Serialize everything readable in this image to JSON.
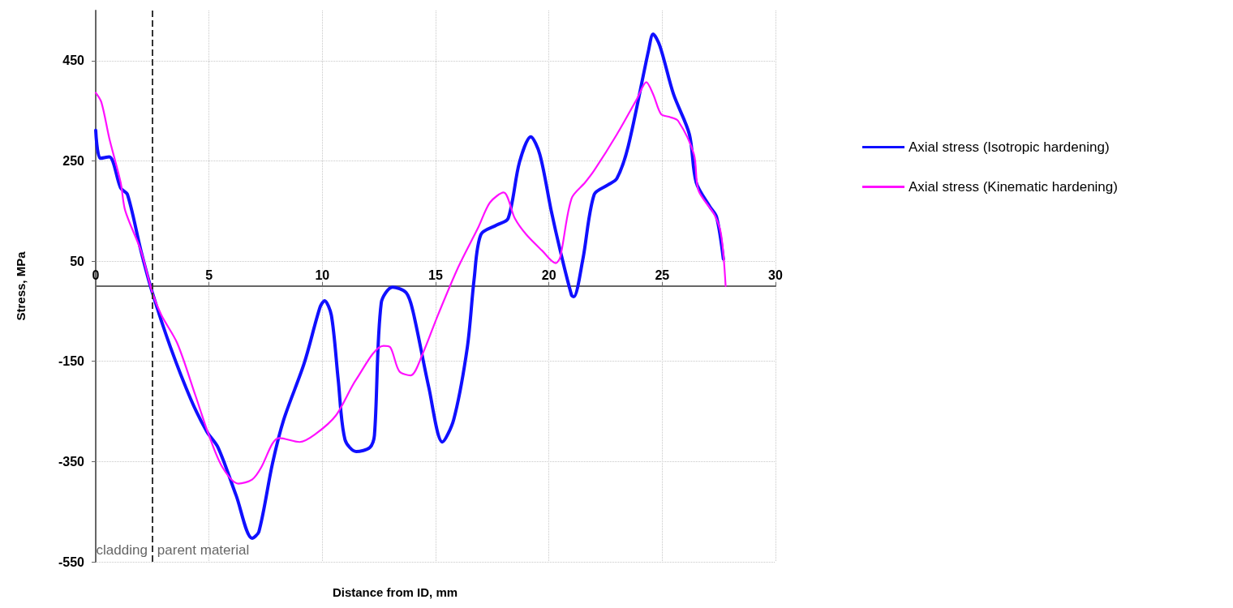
{
  "chart_data": {
    "type": "line",
    "xlabel": "Distance from ID, mm",
    "ylabel": "Stress, MPa",
    "xlim": [
      0,
      30
    ],
    "xticks": [
      0,
      5,
      10,
      15,
      20,
      25,
      30
    ],
    "ylim": [
      -550,
      550
    ],
    "yticks": [
      -550,
      -350,
      -150,
      50,
      250,
      450
    ],
    "grid": true,
    "legend": "right",
    "marker": "none",
    "line_style": "solid",
    "ref_lines": [
      {
        "axis": "x",
        "value": 2.5,
        "color": "#333333",
        "line_style": "dashed"
      }
    ],
    "annotations": [
      "cladding",
      "parent material"
    ],
    "series": [
      {
        "name": "Axial stress (Isotropic hardening)",
        "color": "#1010ff",
        "x": [
          0,
          0.2,
          0.6,
          1.1,
          1.4,
          2.0,
          2.5,
          3.3,
          4.2,
          4.9,
          5.4,
          6.2,
          6.9,
          7.2,
          7.8,
          8.3,
          9.2,
          9.9,
          10.1,
          10.4,
          10.7,
          11.0,
          11.5,
          12.1,
          12.3,
          12.6,
          13.1,
          13.7,
          14.0,
          14.7,
          15.3,
          15.8,
          16.4,
          16.7,
          17.0,
          17.7,
          18.2,
          18.7,
          19.2,
          19.6,
          20.1,
          20.5,
          21.0,
          21.1,
          21.5,
          22.0,
          22.6,
          23.0,
          23.5,
          24.4,
          24.6,
          24.9,
          25.5,
          26.2,
          26.5,
          27.1,
          27.4,
          27.7
        ],
        "values": [
          311,
          255,
          258,
          196,
          183,
          70,
          -13,
          -122,
          -226,
          -290,
          -322,
          -418,
          -503,
          -490,
          -354,
          -266,
          -154,
          -42,
          -29,
          -58,
          -186,
          -306,
          -330,
          -322,
          -298,
          -34,
          -2,
          -13,
          -50,
          -202,
          -311,
          -266,
          -122,
          14,
          103,
          122,
          135,
          247,
          298,
          263,
          151,
          71,
          -18,
          -21,
          54,
          183,
          202,
          215,
          279,
          471,
          503,
          479,
          383,
          303,
          207,
          159,
          138,
          54
        ]
      },
      {
        "name": "Axial stress (Kinematic hardening)",
        "color": "#ff10ff",
        "x": [
          0,
          0.25,
          0.6,
          1.1,
          1.3,
          2.0,
          2.5,
          2.9,
          3.6,
          4.4,
          5.0,
          5.6,
          6.3,
          6.9,
          7.3,
          7.8,
          8.1,
          9.0,
          9.7,
          10.6,
          11.5,
          12.7,
          13.0,
          13.4,
          13.9,
          14.4,
          15.1,
          16.0,
          16.9,
          17.4,
          18.0,
          18.5,
          19.0,
          19.7,
          20.3,
          20.5,
          21.0,
          21.6,
          22.0,
          23.0,
          23.9,
          24.3,
          24.6,
          24.95,
          25.3,
          25.7,
          26.4,
          26.6,
          27.3,
          27.6,
          27.8
        ],
        "values": [
          386,
          367,
          295,
          207,
          151,
          70,
          -13,
          -58,
          -114,
          -218,
          -298,
          -362,
          -394,
          -386,
          -362,
          -314,
          -303,
          -311,
          -295,
          -258,
          -186,
          -119,
          -122,
          -170,
          -178,
          -138,
          -58,
          38,
          119,
          167,
          187,
          135,
          103,
          71,
          46,
          58,
          175,
          207,
          231,
          303,
          375,
          407,
          383,
          343,
          338,
          330,
          263,
          191,
          143,
          103,
          0
        ]
      }
    ]
  }
}
